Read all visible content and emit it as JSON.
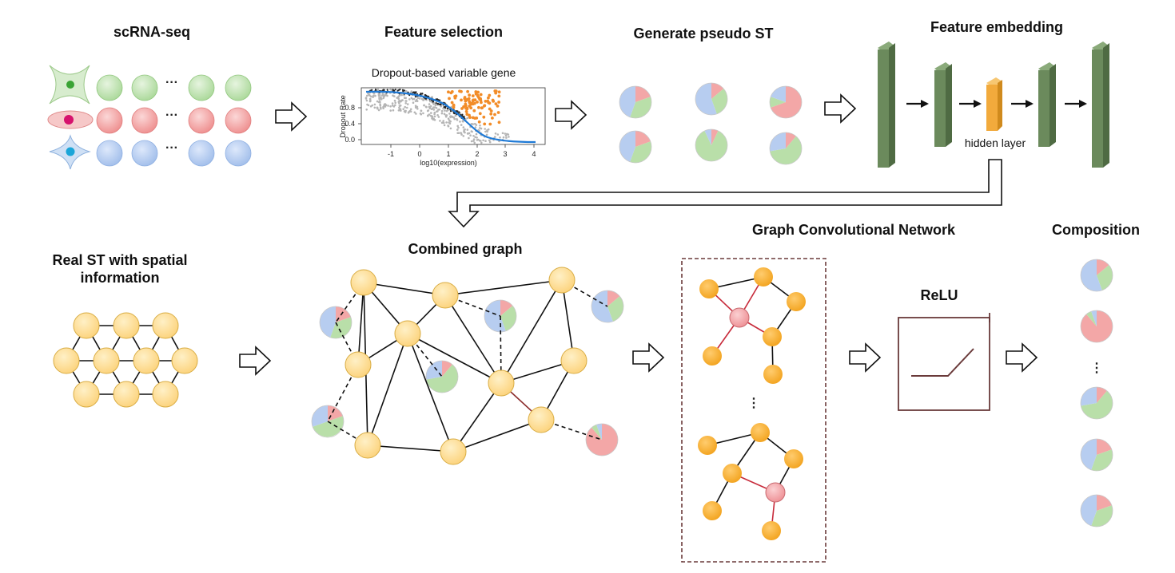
{
  "titles": {
    "scrna": "scRNA-seq",
    "feature_selection": "Feature selection",
    "pseudo_st": "Generate pseudo ST",
    "feature_embedding": "Feature embedding",
    "real_st_line1": "Real ST with spatial",
    "real_st_line2": "information",
    "combined_graph": "Combined graph",
    "gcn": "Graph Convolutional Network",
    "composition": "Composition",
    "relu": "ReLU"
  },
  "labels": {
    "dropout_plot_title": "Dropout-based variable gene",
    "hidden_layer": "hidden layer",
    "row_ellipsis": "···",
    "vertical_ellipsis": "⋮"
  },
  "dropout_plot": {
    "xlabel": "log10(expression)",
    "ylabel": "Dropout Rate",
    "xticks": [
      "-1",
      "0",
      "1",
      "2",
      "3",
      "4"
    ],
    "yticks": [
      "0.0",
      "0.4",
      "0.8"
    ]
  },
  "colors": {
    "green": "#b9dfa9",
    "red": "#f3a7a7",
    "blue": "#b7cdf0",
    "node": "#fdd98a",
    "node_stroke": "#d9ad44",
    "gcn_node": "#f5ac2e",
    "gcn_center": "#f4a4a8",
    "layer": "#6b8a5c",
    "hidden": "#f2aa3c"
  },
  "icons": [
    "cell-icon-green",
    "cell-icon-red",
    "cell-icon-blue",
    "arrow-icon",
    "pie-icon"
  ]
}
